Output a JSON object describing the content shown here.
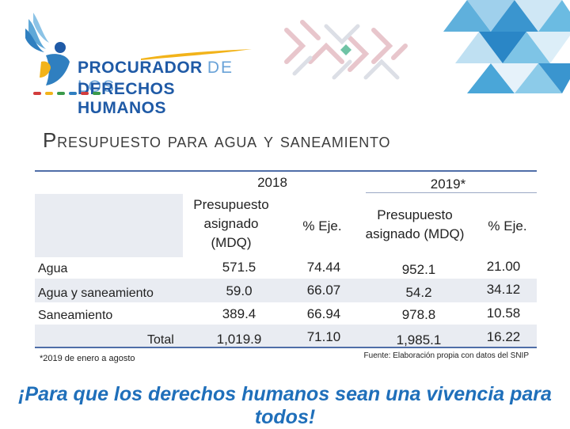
{
  "logo": {
    "line1_strong": "PROCURADOR",
    "line1_light": "DE LOS",
    "line2": "DERECHOS HUMANOS",
    "colors": {
      "primary": "#1f5aa6",
      "secondary": "#6aa3d8",
      "accent": "#f2b31a"
    }
  },
  "title": "Presupuesto para agua y saneamiento",
  "table": {
    "year_2018": "2018",
    "year_2019": "2019*",
    "col_budget_2018": [
      "Presupuesto",
      "asignado",
      "(MDQ)"
    ],
    "col_exec_2018": "% Eje.",
    "col_budget_2019": [
      "Presupuesto",
      "asignado (MDQ)"
    ],
    "col_exec_2019": "% Eje.",
    "rows": [
      {
        "label": "Agua",
        "budget_2018": "571.5",
        "exec_2018": "74.44",
        "budget_2019": "952.1",
        "exec_2019": "21.00"
      },
      {
        "label": "Agua y saneamiento",
        "budget_2018": "59.0",
        "exec_2018": "66.07",
        "budget_2019": "54.2",
        "exec_2019": "34.12"
      },
      {
        "label": "Saneamiento",
        "budget_2018": "389.4",
        "exec_2018": "66.94",
        "budget_2019": "978.8",
        "exec_2019": "10.58"
      },
      {
        "label": "Total",
        "budget_2018": "1,019.9",
        "exec_2018": "71.10",
        "budget_2019": "1,985.1",
        "exec_2019": "16.22"
      }
    ]
  },
  "footnote": "*2019 de enero a agosto",
  "source": "Fuente: Elaboración propia con datos del SNIP",
  "slogan": "¡Para que los derechos humanos sean una vivencia para todos!"
}
